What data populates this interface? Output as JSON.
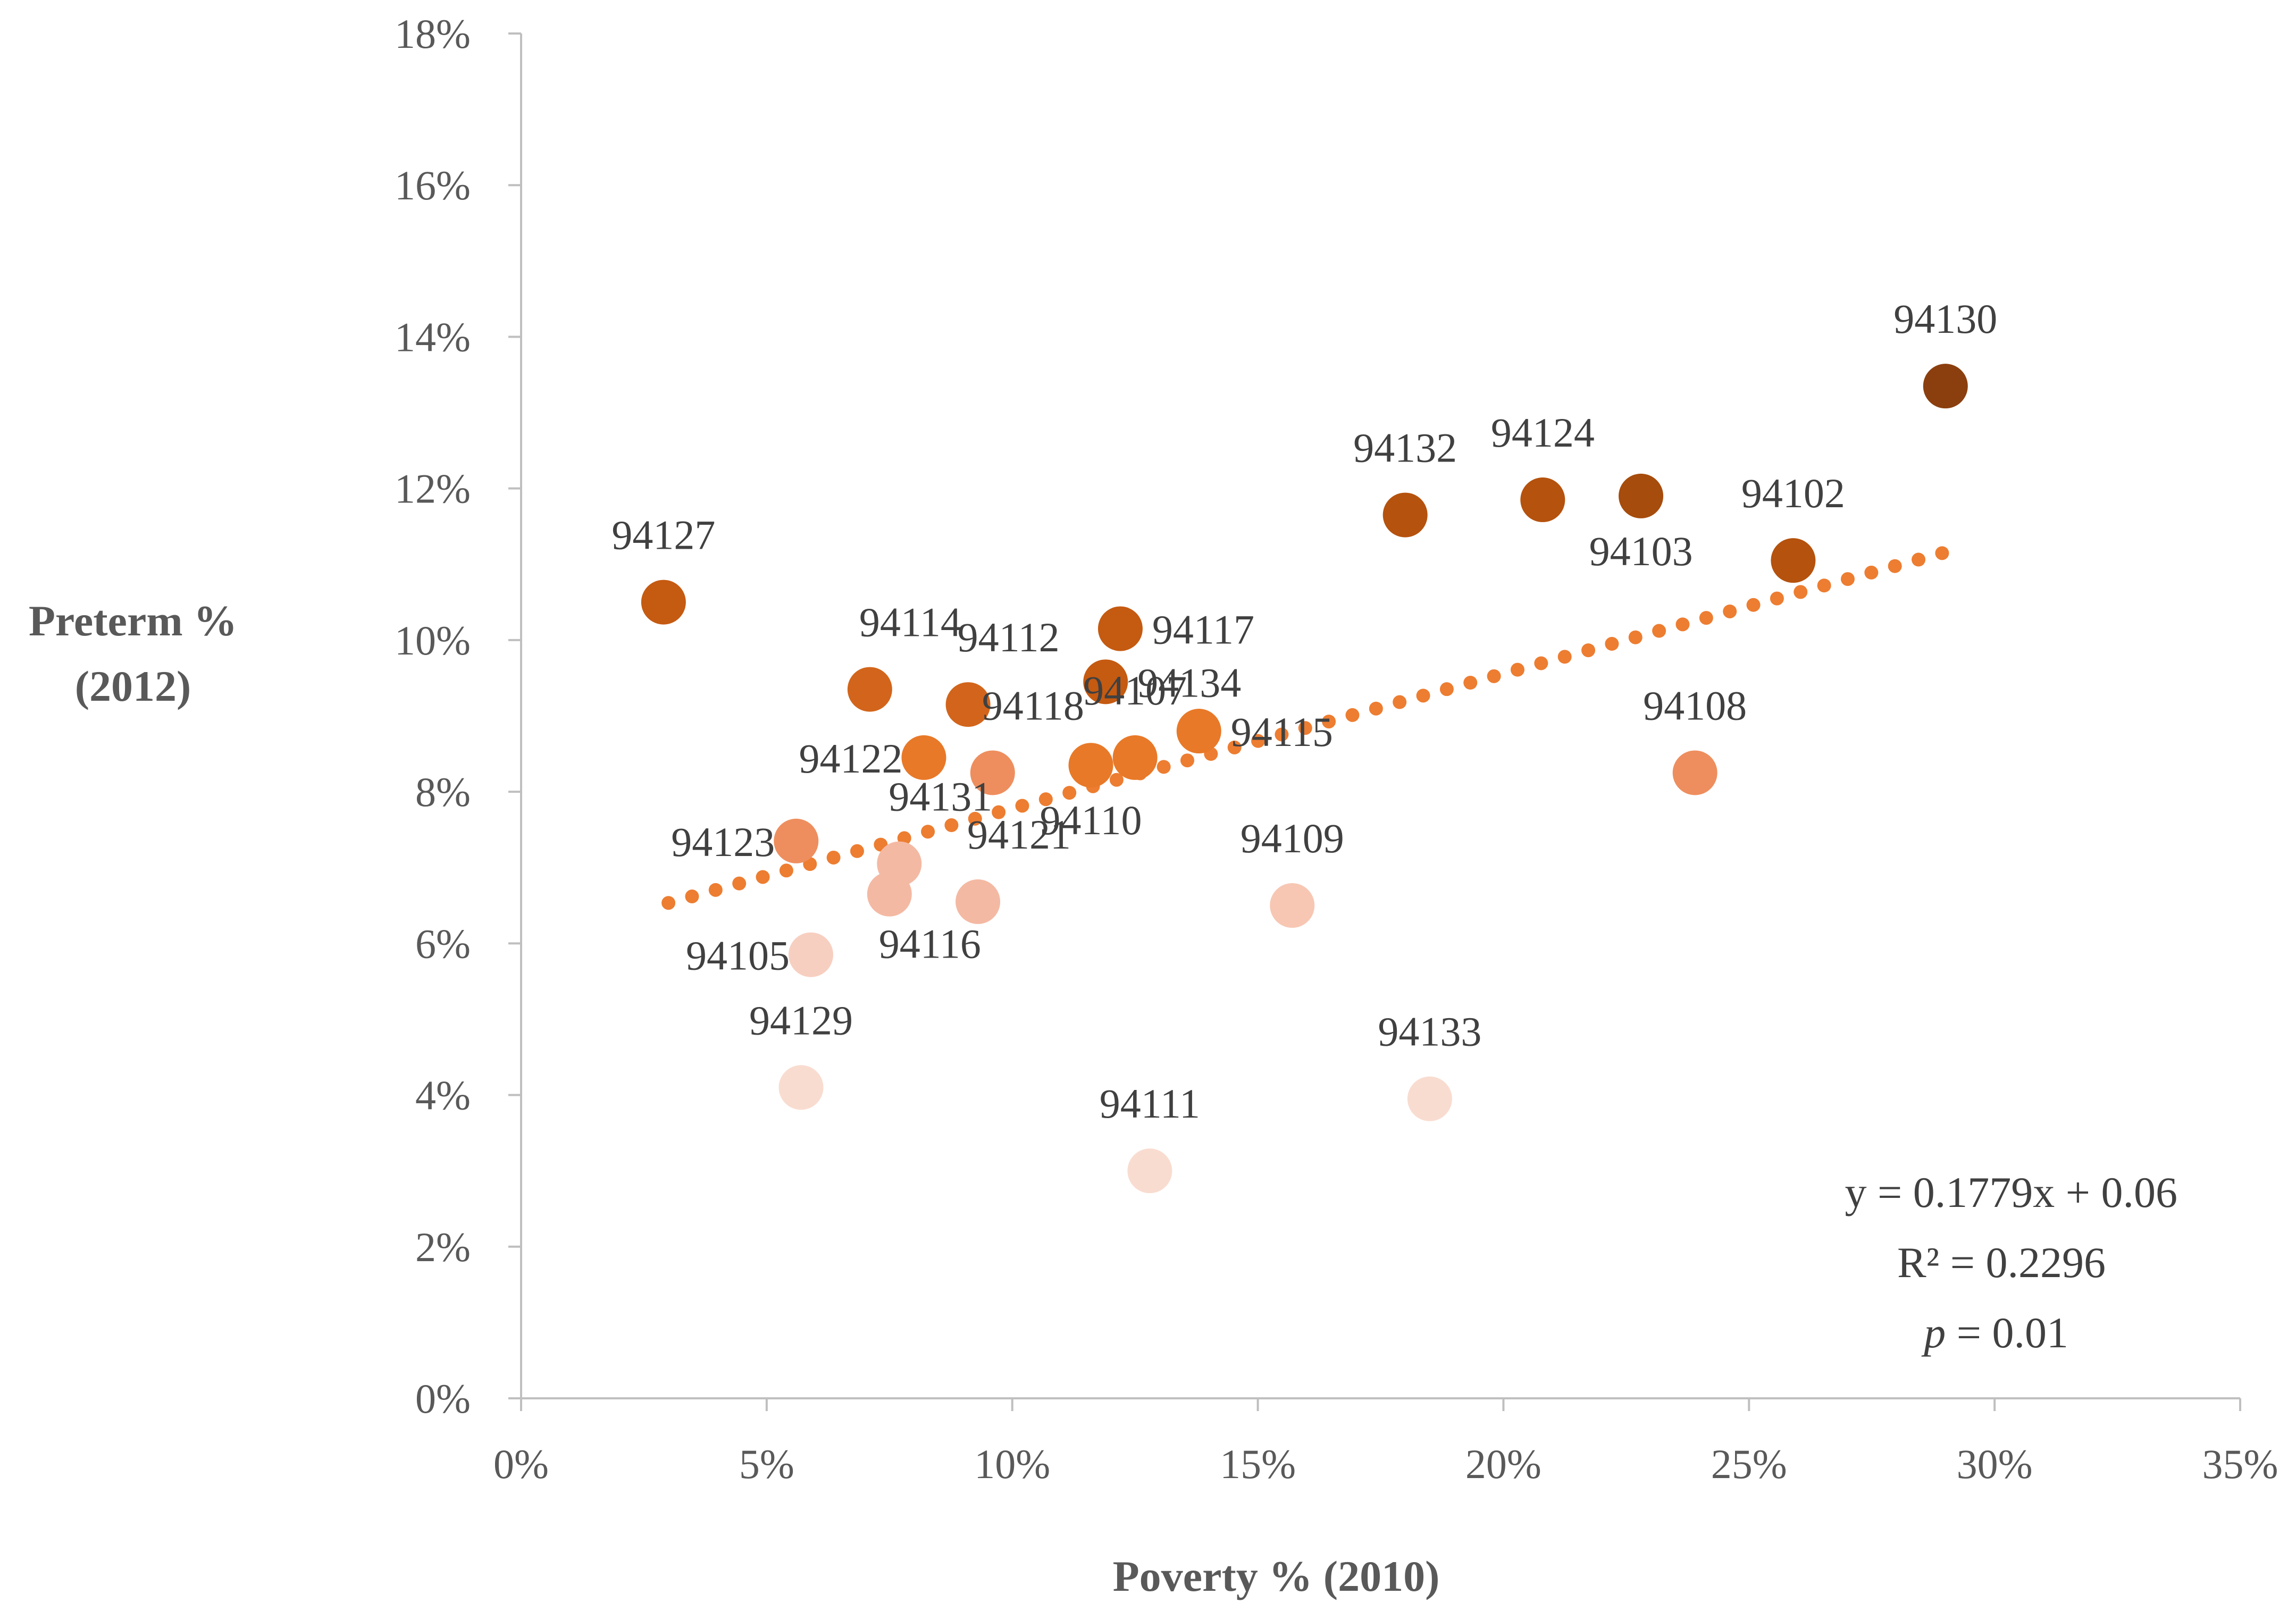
{
  "chart_data": {
    "type": "scatter",
    "title": "",
    "xlabel": "Poverty % (2010)",
    "ylabel_line1": "Preterm %",
    "ylabel_line2": "(2012)",
    "xlim": [
      0,
      35
    ],
    "ylim": [
      0,
      18
    ],
    "x_ticks": [
      0,
      5,
      10,
      15,
      20,
      25,
      30,
      35
    ],
    "x_tick_labels": [
      "0%",
      "5%",
      "10%",
      "15%",
      "20%",
      "25%",
      "30%",
      "35%"
    ],
    "y_ticks": [
      0,
      2,
      4,
      6,
      8,
      10,
      12,
      14,
      16,
      18
    ],
    "y_tick_labels": [
      "0%",
      "2%",
      "4%",
      "6%",
      "8%",
      "10%",
      "12%",
      "14%",
      "16%",
      "18%"
    ],
    "grid": false,
    "trendline": {
      "slope": 0.1779,
      "intercept": 6.0,
      "x_start": 3.0,
      "x_end": 29.0,
      "color": "#ED7D31",
      "style": "dotted"
    },
    "equation": {
      "line1": "y = 0.1779x + 0.06",
      "line2": "R² = 0.2296",
      "line3_italic": "p",
      "line3_rest": " = 0.01"
    },
    "points": [
      {
        "label": "94127",
        "x": 2.9,
        "y": 10.5,
        "color": "#C55A11",
        "label_pos": "above"
      },
      {
        "label": "94114",
        "x": 7.1,
        "y": 9.35,
        "color": "#D2651B",
        "label_pos": "above-right"
      },
      {
        "label": "94112",
        "x": 9.1,
        "y": 9.15,
        "color": "#D2651B",
        "label_pos": "above-right"
      },
      {
        "label": "94122",
        "x": 8.2,
        "y": 8.45,
        "color": "#E87928",
        "label_pos": "left"
      },
      {
        "label": "94118",
        "x": 9.6,
        "y": 8.25,
        "color": "#EE8E5E",
        "label_pos": "above-right"
      },
      {
        "label": "94110",
        "x": 11.6,
        "y": 8.35,
        "color": "#E87928",
        "label_pos": "below"
      },
      {
        "label": "94107",
        "x": 12.5,
        "y": 8.45,
        "color": "#E87928",
        "label_pos": "above"
      },
      {
        "label": "94115",
        "x": 13.8,
        "y": 8.8,
        "color": "#E87928",
        "label_pos": "right"
      },
      {
        "label": "94117",
        "x": 12.2,
        "y": 10.15,
        "color": "#C55A11",
        "label_pos": "right"
      },
      {
        "label": "94134",
        "x": 11.9,
        "y": 9.45,
        "color": "#C55A11",
        "label_pos": "right"
      },
      {
        "label": "94123",
        "x": 5.6,
        "y": 7.35,
        "color": "#EE8E5E",
        "label_pos": "left"
      },
      {
        "label": "94131",
        "x": 7.7,
        "y": 7.05,
        "color": "#F4B9A3",
        "label_pos": "above-right"
      },
      {
        "label": "94116",
        "x": 7.5,
        "y": 6.65,
        "color": "#F4B9A3",
        "label_pos": "below-right"
      },
      {
        "label": "94121",
        "x": 9.3,
        "y": 6.55,
        "color": "#F4B9A3",
        "label_pos": "above-right"
      },
      {
        "label": "94105",
        "x": 5.9,
        "y": 5.85,
        "color": "#F7CFC0",
        "label_pos": "left"
      },
      {
        "label": "94129",
        "x": 5.7,
        "y": 4.1,
        "color": "#F9DCD0",
        "label_pos": "above"
      },
      {
        "label": "94109",
        "x": 15.7,
        "y": 6.5,
        "color": "#F7C7B3",
        "label_pos": "above"
      },
      {
        "label": "94111",
        "x": 12.8,
        "y": 3.0,
        "color": "#F9DCD0",
        "label_pos": "above"
      },
      {
        "label": "94133",
        "x": 18.5,
        "y": 3.95,
        "color": "#F9DCD0",
        "label_pos": "above"
      },
      {
        "label": "94132",
        "x": 18.0,
        "y": 11.65,
        "color": "#B5520D",
        "label_pos": "above"
      },
      {
        "label": "94124",
        "x": 20.8,
        "y": 11.85,
        "color": "#B5520D",
        "label_pos": "above"
      },
      {
        "label": "94103",
        "x": 22.8,
        "y": 11.9,
        "color": "#A64C0C",
        "label_pos": "below"
      },
      {
        "label": "94102",
        "x": 25.9,
        "y": 11.05,
        "color": "#B5520D",
        "label_pos": "above"
      },
      {
        "label": "94108",
        "x": 23.9,
        "y": 8.25,
        "color": "#EE8E5E",
        "label_pos": "above"
      },
      {
        "label": "94130",
        "x": 29.0,
        "y": 13.35,
        "color": "#8B3F0E",
        "label_pos": "above"
      }
    ]
  }
}
